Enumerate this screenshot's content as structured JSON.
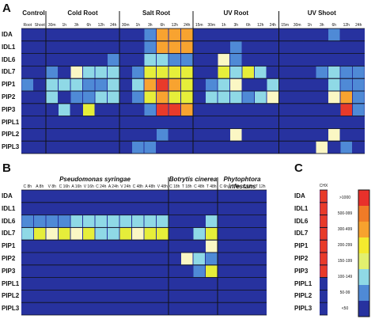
{
  "panels": {
    "a": {
      "letter": "A",
      "row_labels": [
        "IDA",
        "IDL1",
        "IDL6",
        "IDL7",
        "PIP1",
        "PIP2",
        "PIP3",
        "PIPL1",
        "PIPL2",
        "PIPL3"
      ],
      "groups": [
        "Control",
        "Cold Root",
        "Salt Root",
        "UV Root",
        "UV Shoot"
      ],
      "col_labels": [
        "Root",
        "Shoot",
        "30m",
        "1h",
        "3h",
        "6h",
        "12h",
        "24h",
        "30m",
        "1h",
        "3h",
        "6h",
        "12h",
        "24h",
        "15m",
        "30m",
        "1h",
        "3h",
        "6h",
        "12h",
        "24h",
        "15m",
        "30m",
        "1h",
        "3h",
        "6h",
        "12h",
        "24h"
      ],
      "group_spans": [
        [
          0,
          2
        ],
        [
          2,
          8
        ],
        [
          8,
          14
        ],
        [
          14,
          21
        ],
        [
          21,
          28
        ]
      ],
      "values": [
        [
          0,
          0,
          0,
          0,
          0,
          0,
          0,
          0,
          0,
          0,
          1,
          4,
          4,
          4,
          0,
          0,
          0,
          0,
          0,
          0,
          0,
          0,
          0,
          0,
          0,
          1,
          0,
          0
        ],
        [
          0,
          0,
          0,
          0,
          0,
          0,
          0,
          0,
          0,
          0,
          1,
          4,
          4,
          4,
          0,
          0,
          0,
          1,
          0,
          0,
          0,
          0,
          0,
          0,
          0,
          0,
          0,
          0
        ],
        [
          0,
          0,
          0,
          0,
          0,
          0,
          0,
          1,
          0,
          0,
          2,
          2,
          1,
          1,
          0,
          0,
          2,
          1,
          0,
          0,
          0,
          0,
          0,
          0,
          0,
          0,
          0,
          0
        ],
        [
          0,
          0,
          1,
          0,
          3,
          2,
          2,
          2,
          0,
          1,
          3,
          3,
          3,
          3,
          0,
          0,
          3,
          2,
          3,
          2,
          0,
          0,
          0,
          0,
          1,
          2,
          1,
          1
        ],
        [
          1,
          0,
          2,
          2,
          2,
          1,
          1,
          2,
          0,
          2,
          4,
          5,
          4,
          3,
          0,
          1,
          2,
          1,
          0,
          0,
          2,
          0,
          0,
          0,
          0,
          2,
          1,
          1
        ],
        [
          0,
          0,
          2,
          0,
          1,
          1,
          2,
          2,
          0,
          1,
          3,
          4,
          3,
          3,
          0,
          2,
          2,
          2,
          1,
          2,
          2,
          0,
          0,
          0,
          0,
          3,
          4,
          1
        ],
        [
          0,
          0,
          0,
          2,
          0,
          3,
          0,
          0,
          0,
          0,
          1,
          5,
          5,
          4,
          0,
          0,
          0,
          0,
          0,
          0,
          0,
          0,
          0,
          0,
          0,
          0,
          5,
          1
        ],
        [
          0,
          0,
          0,
          0,
          0,
          0,
          0,
          0,
          0,
          0,
          0,
          0,
          0,
          0,
          0,
          0,
          0,
          0,
          0,
          0,
          0,
          0,
          0,
          0,
          0,
          0,
          0,
          0
        ],
        [
          0,
          0,
          0,
          0,
          0,
          0,
          0,
          0,
          0,
          0,
          0,
          1,
          0,
          0,
          0,
          0,
          0,
          3,
          0,
          0,
          0,
          0,
          0,
          0,
          0,
          3,
          0,
          0
        ],
        [
          0,
          0,
          0,
          0,
          0,
          0,
          0,
          0,
          0,
          1,
          1,
          0,
          0,
          0,
          0,
          0,
          0,
          0,
          0,
          0,
          0,
          0,
          0,
          0,
          3,
          0,
          1,
          0
        ]
      ]
    },
    "b": {
      "letter": "B",
      "row_labels": [
        "IDA",
        "IDL1",
        "IDL6",
        "IDL7",
        "PIP1",
        "PIP2",
        "PIP3",
        "PIPL1",
        "PIPL2",
        "PIPL3"
      ],
      "groups": [
        "Pseudomonas syringae",
        "Botrytis cinerea",
        "Phytophtora infestans"
      ],
      "col_labels": [
        "C 8h",
        "A 8h",
        "V 8h",
        "C 16h",
        "A 16h",
        "V 16h",
        "C 24h",
        "A 24h",
        "V 24h",
        "C 48h",
        "A 48h",
        "V 48h",
        "C 18h",
        "T 18h",
        "C 48h",
        "T 48h",
        "C 6h",
        "T 6h",
        "C 12h",
        "T 12h"
      ],
      "group_spans": [
        [
          0,
          12
        ],
        [
          12,
          16
        ],
        [
          16,
          20
        ]
      ],
      "values": [
        [
          0,
          0,
          0,
          0,
          0,
          0,
          0,
          0,
          0,
          0,
          0,
          0,
          0,
          0,
          0,
          0,
          0,
          0,
          0,
          0
        ],
        [
          0,
          0,
          0,
          0,
          0,
          0,
          0,
          0,
          0,
          0,
          0,
          0,
          0,
          0,
          0,
          0,
          0,
          0,
          0,
          0
        ],
        [
          1,
          1,
          1,
          1,
          2,
          2,
          2,
          2,
          2,
          2,
          2,
          2,
          0,
          0,
          0,
          2,
          0,
          0,
          0,
          0
        ],
        [
          2,
          3,
          2,
          3,
          3,
          3,
          2,
          2,
          3,
          3,
          3,
          3,
          0,
          0,
          2,
          3,
          0,
          0,
          0,
          0
        ],
        [
          0,
          0,
          0,
          0,
          0,
          0,
          0,
          0,
          0,
          0,
          0,
          0,
          0,
          0,
          0,
          3,
          0,
          0,
          0,
          0
        ],
        [
          0,
          0,
          0,
          0,
          0,
          0,
          0,
          0,
          0,
          0,
          0,
          0,
          0,
          3,
          2,
          1,
          0,
          0,
          0,
          0
        ],
        [
          0,
          0,
          0,
          0,
          0,
          0,
          0,
          0,
          0,
          0,
          0,
          0,
          0,
          0,
          1,
          3,
          0,
          0,
          0,
          0
        ],
        [
          0,
          0,
          0,
          0,
          0,
          0,
          0,
          0,
          0,
          0,
          0,
          0,
          0,
          0,
          0,
          0,
          0,
          0,
          0,
          0
        ],
        [
          0,
          0,
          0,
          0,
          0,
          0,
          0,
          0,
          0,
          0,
          0,
          0,
          0,
          0,
          0,
          0,
          0,
          0,
          0,
          0
        ],
        [
          0,
          0,
          0,
          0,
          0,
          0,
          0,
          0,
          0,
          0,
          0,
          0,
          0,
          0,
          0,
          0,
          0,
          0,
          0,
          0
        ]
      ]
    },
    "c": {
      "letter": "C",
      "row_labels": [
        "IDA",
        "IDL1",
        "IDL6",
        "IDL7",
        "PIP1",
        "PIP2",
        "PIP3",
        "PIPL1",
        "PIPL2",
        "PIPL3"
      ],
      "chx_title": "CHX",
      "chx_values": [
        5,
        5,
        5,
        5,
        5,
        5,
        5,
        0,
        0,
        0
      ],
      "legend": [
        ">1000",
        "500-999",
        "300-499",
        "200-299",
        "150-199",
        "100-149",
        "50-99",
        "<50"
      ],
      "legend_colors": [
        "#e8312b",
        "#f07b27",
        "#f7a22e",
        "#f4ea2e",
        "#e3f06e",
        "#8fd9e6",
        "#4f8ad6",
        "#27329f"
      ]
    }
  },
  "palette": [
    "#27329f",
    "#4f8ad6",
    "#8fd9e6",
    "#e6ee3a",
    "#f8a330",
    "#e83a2a"
  ],
  "pale_cells": {
    "a": [
      [
        3,
        4
      ],
      [
        4,
        17
      ],
      [
        5,
        20
      ],
      [
        5,
        25
      ],
      [
        2,
        16
      ],
      [
        8,
        17
      ],
      [
        8,
        25
      ],
      [
        9,
        24
      ]
    ],
    "b": [
      [
        3,
        2
      ],
      [
        3,
        4
      ],
      [
        3,
        9
      ],
      [
        5,
        13
      ],
      [
        4,
        15
      ]
    ]
  },
  "pale_color": "#fbf7c4"
}
